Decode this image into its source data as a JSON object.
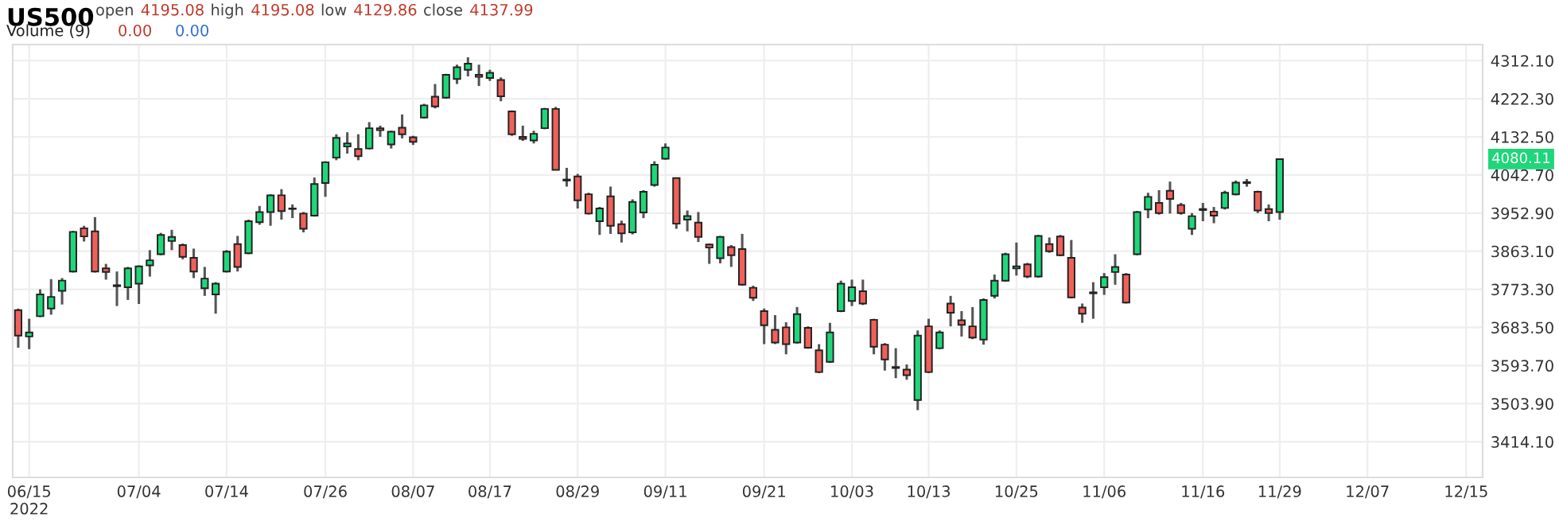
{
  "chart_data": {
    "type": "candlestick",
    "title": "US500",
    "annotations": [
      "open",
      "4195.08",
      "high",
      "4195.08",
      "low",
      "4129.86",
      "close",
      "4137.99",
      "Volume (9)",
      "0.00",
      "0.00",
      "4080.11"
    ],
    "categories": [
      null,
      "06/15\n2022",
      null,
      null,
      null,
      null,
      null,
      null,
      null,
      null,
      null,
      "07/04",
      null,
      null,
      null,
      null,
      null,
      null,
      null,
      "07/14",
      null,
      null,
      null,
      null,
      null,
      null,
      null,
      null,
      "07/26",
      null,
      null,
      null,
      null,
      null,
      null,
      null,
      "08/07",
      null,
      null,
      null,
      null,
      null,
      null,
      "08/17",
      null,
      null,
      null,
      null,
      null,
      null,
      null,
      "08/29",
      null,
      null,
      null,
      null,
      null,
      null,
      null,
      "09/11",
      null,
      null,
      null,
      null,
      null,
      null,
      null,
      null,
      "09/21",
      null,
      null,
      null,
      null,
      null,
      null,
      null,
      "10/03",
      null,
      null,
      null,
      null,
      null,
      null,
      "10/13",
      null,
      null,
      null,
      null,
      null,
      null,
      null,
      "10/25",
      null,
      null,
      null,
      null,
      null,
      null,
      null,
      "11/06",
      null,
      null,
      null,
      null,
      null,
      null,
      null,
      null,
      "11/16",
      null,
      null,
      null,
      null,
      null,
      null,
      "11/29",
      null,
      null,
      null,
      null,
      null,
      null,
      null,
      "12/07",
      null,
      null,
      null,
      null,
      null,
      null,
      null,
      null,
      "12/15",
      null
    ],
    "ohlc": [
      [
        3724.3,
        3727.9,
        3635.7,
        3664.4
      ],
      [
        3662.1,
        3704.0,
        3632.2,
        3671.7
      ],
      [
        3709.9,
        3773.4,
        3707.6,
        3761.4
      ],
      [
        3727.9,
        3797.3,
        3713.5,
        3755.4
      ],
      [
        3769.8,
        3799.7,
        3737.5,
        3793.8
      ],
      [
        3815.3,
        3911.1,
        3812.9,
        3908.7
      ],
      [
        3917.1,
        3923.0,
        3885.9,
        3897.9
      ],
      [
        3909.9,
        3943.4,
        3812.9,
        3815.3
      ],
      [
        3822.5,
        3833.2,
        3796.1,
        3814.1
      ],
      [
        3783.0,
        3815.3,
        3733.9,
        3780.6
      ],
      [
        3778.2,
        3826.1,
        3748.3,
        3822.5
      ],
      [
        3786.6,
        3829.7,
        3738.7,
        3827.3
      ],
      [
        3829.7,
        3865.6,
        3803.3,
        3841.6
      ],
      [
        3856.0,
        3906.3,
        3853.6,
        3901.5
      ],
      [
        3887.1,
        3913.5,
        3865.6,
        3896.7
      ],
      [
        3877.5,
        3881.1,
        3844.0,
        3850.0
      ],
      [
        3847.6,
        3869.2,
        3799.7,
        3815.3
      ],
      [
        3775.8,
        3826.1,
        3757.8,
        3798.5
      ],
      [
        3761.4,
        3790.2,
        3715.9,
        3786.6
      ],
      [
        3815.3,
        3865.6,
        3812.9,
        3862.0
      ],
      [
        3879.9,
        3899.1,
        3815.3,
        3826.1
      ],
      [
        3858.4,
        3937.4,
        3856.0,
        3933.8
      ],
      [
        3931.4,
        3969.7,
        3925.4,
        3955.3
      ],
      [
        3955.3,
        3997.2,
        3923.0,
        3994.8
      ],
      [
        3994.9,
        4009.3,
        3937.5,
        3957.8
      ],
      [
        3963.8,
        3973.4,
        3941.1,
        3962.6
      ],
      [
        3951.8,
        3955.4,
        3907.5,
        3915.9
      ],
      [
        3947.0,
        4036.8,
        3944.6,
        4021.3
      ],
      [
        4023.7,
        4075.1,
        3991.3,
        4072.7
      ],
      [
        4083.5,
        4138.6,
        4077.5,
        4130.2
      ],
      [
        4109.8,
        4143.4,
        4093.1,
        4117.0
      ],
      [
        4103.9,
        4138.6,
        4077.5,
        4087.1
      ],
      [
        4105.1,
        4167.3,
        4102.7,
        4152.9
      ],
      [
        4152.9,
        4158.9,
        4132.6,
        4148.2
      ],
      [
        4114.6,
        4147.0,
        4105.1,
        4144.6
      ],
      [
        4154.1,
        4185.3,
        4129.0,
        4138.6
      ],
      [
        4131.4,
        4135.0,
        4113.4,
        4120.6
      ],
      [
        4178.1,
        4210.4,
        4175.7,
        4206.8
      ],
      [
        4227.2,
        4257.1,
        4199.6,
        4204.4
      ],
      [
        4224.8,
        4281.0,
        4222.4,
        4278.6
      ],
      [
        4269.0,
        4302.6,
        4257.1,
        4296.6
      ],
      [
        4290.6,
        4320.0,
        4275.0,
        4305.0
      ],
      [
        4278.6,
        4302.6,
        4252.3,
        4273.8
      ],
      [
        4271.4,
        4290.6,
        4264.3,
        4283.4
      ],
      [
        4266.6,
        4272.6,
        4216.4,
        4228.3
      ],
      [
        4192.4,
        4194.8,
        4135.0,
        4138.6
      ],
      [
        4132.6,
        4158.9,
        4123.0,
        4127.8
      ],
      [
        4124.2,
        4147.0,
        4117.0,
        4139.8
      ],
      [
        4152.9,
        4200.8,
        4150.5,
        4198.4
      ],
      [
        4198.4,
        4203.2,
        4054.8,
        4054.8
      ],
      [
        4032.0,
        4059.5,
        4015.3,
        4029.6
      ],
      [
        4039.2,
        4045.2,
        3963.8,
        3982.9
      ],
      [
        3997.3,
        4000.9,
        3949.4,
        3951.8
      ],
      [
        3933.9,
        3967.4,
        3901.5,
        3963.8
      ],
      [
        3992.5,
        4015.3,
        3903.9,
        3923.1
      ],
      [
        3926.7,
        3935.1,
        3883.6,
        3905.1
      ],
      [
        3907.5,
        3985.3,
        3902.7,
        3979.3
      ],
      [
        3954.2,
        4006.9,
        3941.0,
        4003.3
      ],
      [
        4018.9,
        4075.1,
        4015.3,
        4066.7
      ],
      [
        4081.1,
        4117.0,
        4078.7,
        4107.4
      ],
      [
        4035.6,
        4036.8,
        3915.9,
        3927.9
      ],
      [
        3937.5,
        3959.0,
        3909.9,
        3945.8
      ],
      [
        3930.3,
        3955.4,
        3884.8,
        3896.7
      ],
      [
        3878.8,
        3881.2,
        3833.3,
        3871.6
      ],
      [
        3846.5,
        3899.1,
        3834.5,
        3896.7
      ],
      [
        3872.8,
        3877.6,
        3826.1,
        3853.7
      ],
      [
        3868.0,
        3903.9,
        3781.8,
        3784.2
      ],
      [
        3777.0,
        3781.8,
        3745.9,
        3753.1
      ],
      [
        3722.0,
        3728.0,
        3644.2,
        3688.5
      ],
      [
        3677.7,
        3712.4,
        3644.2,
        3647.8
      ],
      [
        3683.7,
        3695.7,
        3620.2,
        3644.2
      ],
      [
        3647.8,
        3731.6,
        3645.4,
        3714.8
      ],
      [
        3682.4,
        3686.0,
        3633.3,
        3635.7
      ],
      [
        3629.7,
        3644.1,
        3575.8,
        3578.2
      ],
      [
        3602.2,
        3694.3,
        3599.8,
        3671.6
      ],
      [
        3721.9,
        3793.7,
        3719.5,
        3786.5
      ],
      [
        3745.8,
        3796.1,
        3733.8,
        3778.1
      ],
      [
        3768.6,
        3796.1,
        3736.2,
        3739.8
      ],
      [
        3701.5,
        3703.9,
        3620.1,
        3638.1
      ],
      [
        3642.9,
        3646.5,
        3581.8,
        3608.1
      ],
      [
        3590.2,
        3634.5,
        3563.9,
        3587.8
      ],
      [
        3584.2,
        3596.2,
        3560.3,
        3571.1
      ],
      [
        3512.4,
        3676.4,
        3488.5,
        3664.4
      ],
      [
        3686.0,
        3703.9,
        3575.8,
        3578.2
      ],
      [
        3634.5,
        3676.4,
        3632.1,
        3671.6
      ],
      [
        3739.8,
        3757.8,
        3686.0,
        3718.3
      ],
      [
        3700.3,
        3721.9,
        3662.0,
        3689.6
      ],
      [
        3686.0,
        3731.4,
        3656.0,
        3659.6
      ],
      [
        3654.8,
        3751.8,
        3642.9,
        3748.2
      ],
      [
        3757.8,
        3808.1,
        3751.8,
        3793.7
      ],
      [
        3793.7,
        3859.5,
        3791.3,
        3855.9
      ],
      [
        3822.4,
        3883.5,
        3805.7,
        3827.2
      ],
      [
        3832.0,
        3835.6,
        3799.7,
        3803.3
      ],
      [
        3803.3,
        3901.4,
        3800.9,
        3899.0
      ],
      [
        3879.9,
        3895.4,
        3859.5,
        3863.1
      ],
      [
        3897.8,
        3901.4,
        3851.2,
        3853.6
      ],
      [
        3847.6,
        3889.5,
        3751.8,
        3754.2
      ],
      [
        3730.3,
        3739.8,
        3694.3,
        3715.9
      ],
      [
        3763.8,
        3790.1,
        3703.9,
        3766.2
      ],
      [
        3778.1,
        3811.6,
        3760.2,
        3802.1
      ],
      [
        3814.0,
        3855.9,
        3784.1,
        3826.0
      ],
      [
        3808.1,
        3811.6,
        3739.8,
        3742.2
      ],
      [
        3855.9,
        3957.7,
        3853.6,
        3955.3
      ],
      [
        3961.3,
        4000.8,
        3940.9,
        3991.2
      ],
      [
        3976.8,
        4006.8,
        3949.3,
        3952.9
      ],
      [
        4005.6,
        4027.1,
        3951.7,
        3986.4
      ],
      [
        3972.0,
        3976.8,
        3949.3,
        3952.9
      ],
      [
        3915.8,
        3952.9,
        3901.4,
        3945.7
      ],
      [
        3960.1,
        3976.8,
        3933.7,
        3962.5
      ],
      [
        3956.5,
        3967.3,
        3929.0,
        3946.9
      ],
      [
        3964.9,
        4005.6,
        3961.3,
        4000.8
      ],
      [
        3997.2,
        4029.5,
        3994.8,
        4024.7
      ],
      [
        4023.5,
        4033.1,
        4015.1,
        4025.9
      ],
      [
        4003.2,
        4005.6,
        3952.9,
        3958.9
      ],
      [
        3962.5,
        3973.2,
        3933.7,
        3952.9
      ],
      [
        3955.3,
        4081.0,
        3937.3,
        4080.11
      ],
      null,
      null,
      null,
      null,
      null,
      null,
      null,
      null,
      null,
      null,
      null,
      null,
      null,
      null,
      null,
      null,
      null,
      null
    ],
    "ylim": [
      3330,
      4350
    ],
    "yticks": [
      {
        "value": 3414.1,
        "label": "3414.10"
      },
      {
        "value": 3503.9,
        "label": "3503.90"
      },
      {
        "value": 3593.7,
        "label": "3593.70"
      },
      {
        "value": 3683.5,
        "label": "3683.50"
      },
      {
        "value": 3773.3,
        "label": "3773.30"
      },
      {
        "value": 3863.1,
        "label": "3863.10"
      },
      {
        "value": 3952.9,
        "label": "3952.90"
      },
      {
        "value": 4042.7,
        "label": "4042.70"
      },
      {
        "value": 4132.5,
        "label": "4132.50"
      },
      {
        "value": 4222.3,
        "label": "4222.30"
      },
      {
        "value": 4312.1,
        "label": "4312.10"
      }
    ],
    "grid": true
  }
}
